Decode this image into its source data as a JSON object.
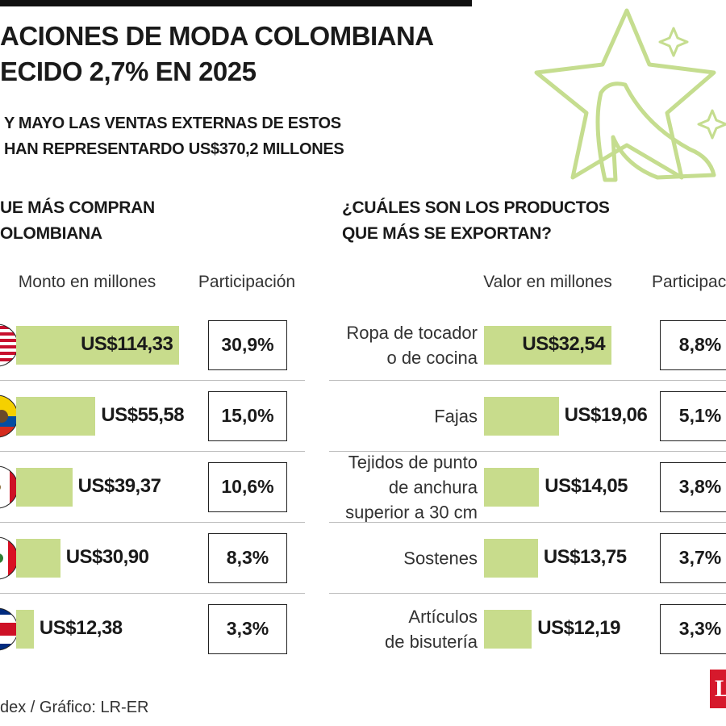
{
  "header": {
    "title": [
      "ACIONES DE MODA COLOMBIANA",
      "ECIDO 2,7% EN 2025"
    ],
    "subtitle": [
      "Y MAYO LAS VENTAS EXTERNAS DE ESTOS",
      "HAN REPRESENTARDO US$370,2 MILLONES"
    ]
  },
  "source": "dex / Gráfico: LR-ER",
  "logo": "L",
  "chart_data": [
    {
      "type": "bar",
      "orientation": "horizontal",
      "title": [
        "UE MÁS COMPRAN",
        "OLOMBIANA"
      ],
      "value_header": "Monto en millones",
      "share_header": "Participación",
      "categories": [
        null,
        null,
        null,
        null,
        null
      ],
      "values": [
        114.33,
        55.58,
        39.37,
        30.9,
        12.38
      ],
      "value_labels": [
        "US$114,33",
        "US$55,58",
        "US$39,37",
        "US$30,90",
        "US$12,38"
      ],
      "shares": [
        30.9,
        15.0,
        10.6,
        8.3,
        3.3
      ],
      "share_labels": [
        "30,9%",
        "15,0%",
        "10,6%",
        "8,3%",
        "3,3%"
      ],
      "color": "#c8dc8c"
    },
    {
      "type": "bar",
      "orientation": "horizontal",
      "title": [
        "¿CUÁLES SON LOS PRODUCTOS",
        "QUE MÁS SE EXPORTAN?"
      ],
      "value_header": "Valor en millones",
      "share_header": "Participac",
      "categories": [
        "Ropa de tocador\no de cocina",
        "Fajas",
        "Tejidos de punto\nde anchura\nsuperior a 30 cm",
        "Sostenes",
        "Artículos\nde bisutería"
      ],
      "values": [
        32.54,
        19.06,
        14.05,
        13.75,
        12.19
      ],
      "value_labels": [
        "US$32,54",
        "US$19,06",
        "US$14,05",
        "US$13,75",
        "US$12,19"
      ],
      "shares": [
        8.8,
        5.1,
        3.8,
        3.7,
        3.3
      ],
      "share_labels": [
        "8,8%",
        "5,1%",
        "3,8%",
        "3,7%",
        "3,3%"
      ],
      "color": "#c8dc8c"
    }
  ]
}
